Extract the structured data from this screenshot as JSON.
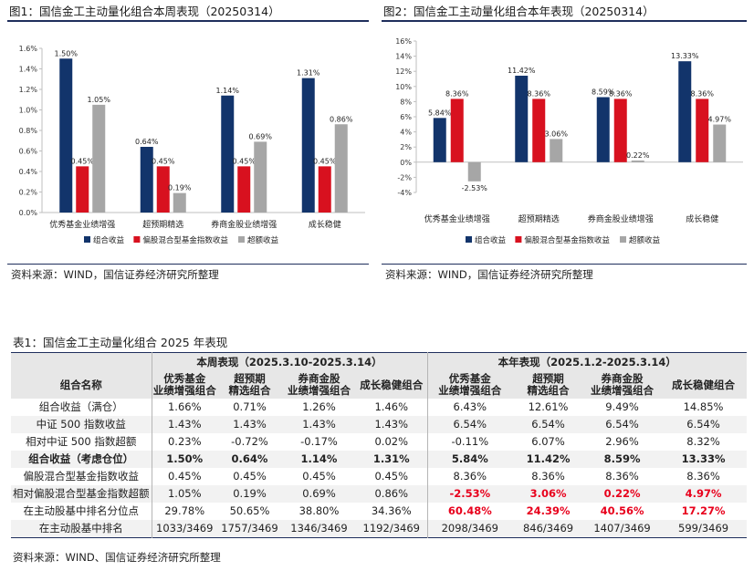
{
  "fig1": {
    "title": "图1：国信金工主动量化组合本周表现（20250314）",
    "source": "资料来源：WIND，国信证券经济研究所整理"
  },
  "fig2": {
    "title": "图2：国信金工主动量化组合本年表现（20250314）",
    "source": "资料来源：WIND，国信证券经济研究所整理"
  },
  "chart_data": [
    {
      "type": "bar",
      "title": "图1：国信金工主动量化组合本周表现（20250314）",
      "categories": [
        "优秀基金业绩增强",
        "超预期精选",
        "券商金股业绩增强",
        "成长稳健"
      ],
      "series": [
        {
          "name": "组合收益",
          "values": [
            1.5,
            0.64,
            1.14,
            1.31
          ],
          "labels": [
            "1.50%",
            "0.64%",
            "1.14%",
            "1.31%"
          ],
          "color": "#12346b"
        },
        {
          "name": "偏股混合型基金指数收益",
          "values": [
            0.45,
            0.45,
            0.45,
            0.45
          ],
          "labels": [
            "0.45%",
            "0.45%",
            "0.45%",
            "0.45%"
          ],
          "color": "#d8111f"
        },
        {
          "name": "超额收益",
          "values": [
            1.05,
            0.19,
            0.69,
            0.86
          ],
          "labels": [
            "1.05%",
            "0.19%",
            "0.69%",
            "0.86%"
          ],
          "color": "#a6a6a6"
        }
      ],
      "ylim": [
        0,
        1.6
      ],
      "yticks": [
        0,
        0.2,
        0.4,
        0.6,
        0.8,
        1.0,
        1.2,
        1.4,
        1.6
      ],
      "ytick_labels": [
        "0.0%",
        "0.2%",
        "0.4%",
        "0.6%",
        "0.8%",
        "1.0%",
        "1.2%",
        "1.4%",
        "1.6%"
      ],
      "legend": "bottom",
      "grid": false
    },
    {
      "type": "bar",
      "title": "图2：国信金工主动量化组合本年表现（20250314）",
      "categories": [
        "优秀基金业绩增强",
        "超预期精选",
        "券商金股业绩增强",
        "成长稳健"
      ],
      "series": [
        {
          "name": "组合收益",
          "values": [
            5.84,
            11.42,
            8.59,
            13.33
          ],
          "labels": [
            "5.84%",
            "11.42%",
            "8.59%",
            "13.33%"
          ],
          "color": "#12346b"
        },
        {
          "name": "偏股混合型基金指数收益",
          "values": [
            8.36,
            8.36,
            8.36,
            8.36
          ],
          "labels": [
            "8.36%",
            "8.36%",
            "8.36%",
            "8.36%"
          ],
          "color": "#d8111f"
        },
        {
          "name": "超额收益",
          "values": [
            -2.53,
            3.06,
            0.22,
            4.97
          ],
          "labels": [
            "-2.53%",
            "3.06%",
            "0.22%",
            "4.97%"
          ],
          "color": "#a6a6a6"
        }
      ],
      "ylim": [
        -4,
        16
      ],
      "yticks": [
        -4,
        -2,
        0,
        2,
        4,
        6,
        8,
        10,
        12,
        14,
        16
      ],
      "ytick_labels": [
        "-4%",
        "-2%",
        "0%",
        "2%",
        "4%",
        "6%",
        "8%",
        "10%",
        "12%",
        "14%",
        "16%"
      ],
      "legend": "bottom",
      "grid": false
    },
    {
      "type": "table",
      "title": "表1：国信金工主动量化组合 2025 年表现",
      "group_headers": [
        "本周表现（2025.3.10-2025.3.14）",
        "本年表现（2025.1.2-2025.3.14）"
      ],
      "row_header": "组合名称",
      "column_headers": [
        [
          "优秀基金",
          "业绩增强组合"
        ],
        [
          "超预期",
          "精选组合"
        ],
        [
          "券商金股",
          "业绩增强组合"
        ],
        [
          "成长稳健组合"
        ],
        [
          "优秀基金",
          "业绩增强组合"
        ],
        [
          "超预期",
          "精选组合"
        ],
        [
          "券商金股",
          "业绩增强组合"
        ],
        [
          "成长稳健组合"
        ]
      ],
      "rows": [
        {
          "label": "组合收益（满仓）",
          "bold": false,
          "values": [
            "1.66%",
            "0.71%",
            "1.26%",
            "1.46%",
            "6.43%",
            "12.61%",
            "9.49%",
            "14.85%"
          ],
          "red": []
        },
        {
          "label": "中证 500 指数收益",
          "bold": false,
          "values": [
            "1.43%",
            "1.43%",
            "1.43%",
            "1.43%",
            "6.54%",
            "6.54%",
            "6.54%",
            "6.54%"
          ],
          "red": []
        },
        {
          "label": "相对中证 500 指数超额",
          "bold": false,
          "values": [
            "0.23%",
            "-0.72%",
            "-0.17%",
            "0.02%",
            "-0.11%",
            "6.07%",
            "2.96%",
            "8.32%"
          ],
          "red": []
        },
        {
          "label": "组合收益（考虑仓位）",
          "bold": true,
          "values": [
            "1.50%",
            "0.64%",
            "1.14%",
            "1.31%",
            "5.84%",
            "11.42%",
            "8.59%",
            "13.33%"
          ],
          "red": []
        },
        {
          "label": "偏股混合型基金指数收益",
          "bold": false,
          "values": [
            "0.45%",
            "0.45%",
            "0.45%",
            "0.45%",
            "8.36%",
            "8.36%",
            "8.36%",
            "8.36%"
          ],
          "red": []
        },
        {
          "label": "相对偏股混合型基金指数超额",
          "bold": false,
          "values": [
            "1.05%",
            "0.19%",
            "0.69%",
            "0.86%",
            "-2.53%",
            "3.06%",
            "0.22%",
            "4.97%"
          ],
          "red": [
            4,
            5,
            6,
            7
          ]
        },
        {
          "label": "在主动股基中排名分位点",
          "bold": false,
          "values": [
            "29.78%",
            "50.65%",
            "38.80%",
            "34.36%",
            "60.48%",
            "24.39%",
            "40.56%",
            "17.27%"
          ],
          "red": [
            4,
            5,
            6,
            7
          ]
        },
        {
          "label": "在主动股基中排名",
          "bold": false,
          "values": [
            "1033/3469",
            "1757/3469",
            "1346/3469",
            "1192/3469",
            "2098/3469",
            "846/3469",
            "1407/3469",
            "599/3469"
          ],
          "red": []
        }
      ],
      "source": "资料来源：WIND、国信证券经济研究所整理"
    }
  ]
}
